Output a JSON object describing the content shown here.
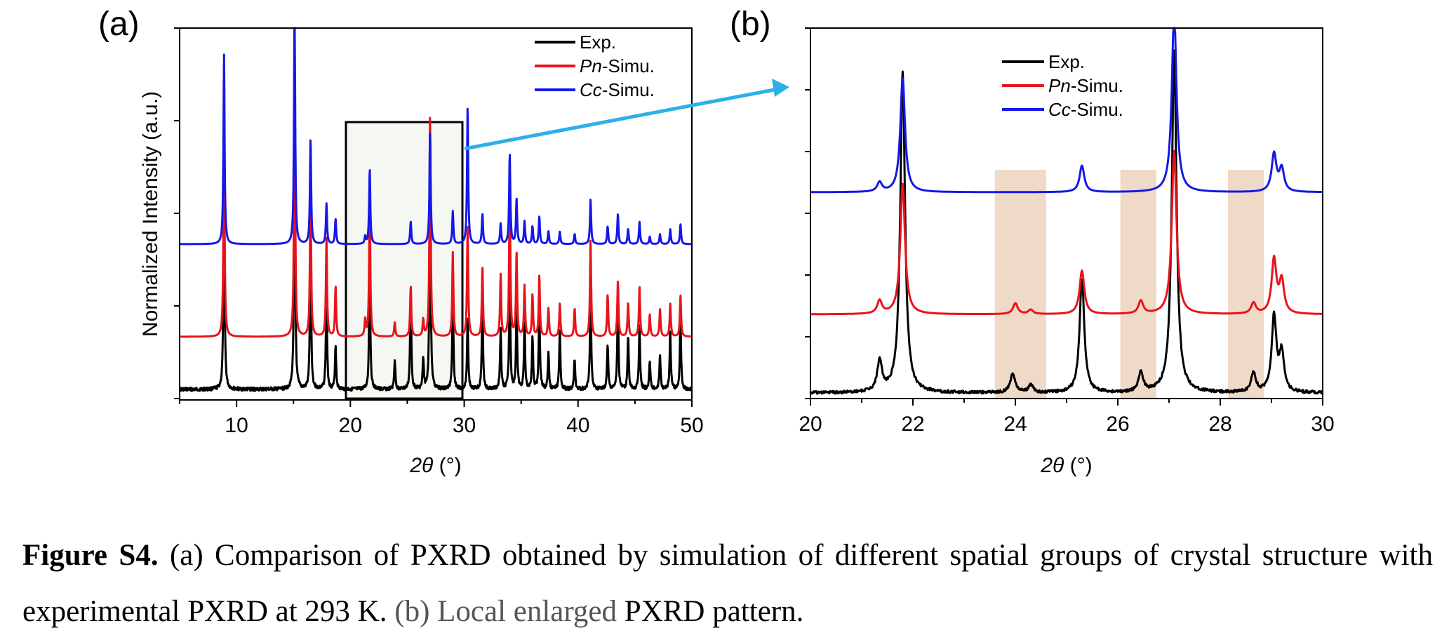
{
  "chart_data": [
    {
      "type": "line",
      "panel_label": "(a)",
      "xlabel_main": "2θ",
      "xlabel_unit": " (°)",
      "ylabel": "Normalized Intensity (a.u.)",
      "xlim": [
        5,
        50
      ],
      "xticks": [
        10,
        20,
        30,
        40,
        50
      ],
      "series": [
        {
          "name_prefix": "",
          "name_suffix": "Exp.",
          "color": "#000000",
          "peaks": [
            [
              8.9,
              0.75
            ],
            [
              15.1,
              0.95
            ],
            [
              16.5,
              0.55
            ],
            [
              17.9,
              0.35
            ],
            [
              18.7,
              0.15
            ],
            [
              21.7,
              0.45
            ],
            [
              23.9,
              0.1
            ],
            [
              25.3,
              0.35
            ],
            [
              26.4,
              0.1
            ],
            [
              27.0,
              0.8
            ],
            [
              29.0,
              0.35
            ],
            [
              30.3,
              0.25
            ],
            [
              31.6,
              0.3
            ],
            [
              33.2,
              0.2
            ],
            [
              34.0,
              0.4
            ],
            [
              34.6,
              0.28
            ],
            [
              35.3,
              0.22
            ],
            [
              36.0,
              0.18
            ],
            [
              36.6,
              0.3
            ],
            [
              37.4,
              0.12
            ],
            [
              38.4,
              0.2
            ],
            [
              39.7,
              0.1
            ],
            [
              41.1,
              0.35
            ],
            [
              42.6,
              0.15
            ],
            [
              43.5,
              0.3
            ],
            [
              44.4,
              0.18
            ],
            [
              45.4,
              0.22
            ],
            [
              46.3,
              0.1
            ],
            [
              47.2,
              0.12
            ],
            [
              48.1,
              0.2
            ],
            [
              49.0,
              0.25
            ]
          ]
        },
        {
          "name_prefix": "Pn",
          "name_suffix": "-Simu.",
          "color": "#e8141b",
          "peaks": [
            [
              8.9,
              0.75
            ],
            [
              15.1,
              0.95
            ],
            [
              16.5,
              0.55
            ],
            [
              17.9,
              0.35
            ],
            [
              18.7,
              0.18
            ],
            [
              21.3,
              0.06
            ],
            [
              21.7,
              0.5
            ],
            [
              23.9,
              0.05
            ],
            [
              25.3,
              0.18
            ],
            [
              26.4,
              0.06
            ],
            [
              27.0,
              0.8
            ],
            [
              29.0,
              0.3
            ],
            [
              30.3,
              0.4
            ],
            [
              31.6,
              0.25
            ],
            [
              33.2,
              0.22
            ],
            [
              34.0,
              0.55
            ],
            [
              34.6,
              0.3
            ],
            [
              35.3,
              0.18
            ],
            [
              36.0,
              0.15
            ],
            [
              36.6,
              0.22
            ],
            [
              37.4,
              0.1
            ],
            [
              38.4,
              0.12
            ],
            [
              39.7,
              0.1
            ],
            [
              41.1,
              0.35
            ],
            [
              42.6,
              0.15
            ],
            [
              43.5,
              0.2
            ],
            [
              44.4,
              0.12
            ],
            [
              45.4,
              0.18
            ],
            [
              46.3,
              0.08
            ],
            [
              47.2,
              0.1
            ],
            [
              48.1,
              0.12
            ],
            [
              49.0,
              0.15
            ]
          ]
        },
        {
          "name_prefix": "Cc",
          "name_suffix": "-Simu.",
          "color": "#1518e8",
          "peaks": [
            [
              8.9,
              0.75
            ],
            [
              15.1,
              0.95
            ],
            [
              16.5,
              0.42
            ],
            [
              17.9,
              0.16
            ],
            [
              18.7,
              0.1
            ],
            [
              21.3,
              0.03
            ],
            [
              21.7,
              0.3
            ],
            [
              25.3,
              0.09
            ],
            [
              27.0,
              0.45
            ],
            [
              29.0,
              0.13
            ],
            [
              30.3,
              0.55
            ],
            [
              31.6,
              0.12
            ],
            [
              33.2,
              0.08
            ],
            [
              34.0,
              0.36
            ],
            [
              34.6,
              0.18
            ],
            [
              35.3,
              0.09
            ],
            [
              36.0,
              0.07
            ],
            [
              36.6,
              0.11
            ],
            [
              37.4,
              0.05
            ],
            [
              38.4,
              0.05
            ],
            [
              39.7,
              0.04
            ],
            [
              41.1,
              0.18
            ],
            [
              42.6,
              0.07
            ],
            [
              43.5,
              0.12
            ],
            [
              44.4,
              0.06
            ],
            [
              45.4,
              0.09
            ],
            [
              46.3,
              0.03
            ],
            [
              47.2,
              0.04
            ],
            [
              48.1,
              0.06
            ],
            [
              49.0,
              0.08
            ]
          ]
        }
      ]
    },
    {
      "type": "line",
      "panel_label": "(b)",
      "xlabel_main": "2θ",
      "xlabel_unit": " (°)",
      "xlim": [
        20,
        30
      ],
      "xticks": [
        20,
        22,
        24,
        26,
        28,
        30
      ],
      "highlight_ranges": [
        [
          23.6,
          24.6
        ],
        [
          26.05,
          26.75
        ],
        [
          28.15,
          28.85
        ]
      ],
      "series": [
        {
          "name_prefix": "",
          "name_suffix": "Exp.",
          "color": "#000000",
          "peaks": [
            [
              21.35,
              0.08
            ],
            [
              21.8,
              0.85
            ],
            [
              23.95,
              0.05
            ],
            [
              24.3,
              0.02
            ],
            [
              25.3,
              0.3
            ],
            [
              26.45,
              0.05
            ],
            [
              27.1,
              0.9
            ],
            [
              28.65,
              0.05
            ],
            [
              29.05,
              0.2
            ],
            [
              29.2,
              0.1
            ]
          ]
        },
        {
          "name_prefix": "Pn",
          "name_suffix": "-Simu.",
          "color": "#e8141b",
          "peaks": [
            [
              21.35,
              0.06
            ],
            [
              21.8,
              0.6
            ],
            [
              24.0,
              0.05
            ],
            [
              24.3,
              0.02
            ],
            [
              25.3,
              0.2
            ],
            [
              26.45,
              0.06
            ],
            [
              27.1,
              0.75
            ],
            [
              28.65,
              0.05
            ],
            [
              29.05,
              0.25
            ],
            [
              29.2,
              0.15
            ]
          ]
        },
        {
          "name_prefix": "Cc",
          "name_suffix": "-Simu.",
          "color": "#1518e8",
          "peaks": [
            [
              21.35,
              0.05
            ],
            [
              21.8,
              0.6
            ],
            [
              25.3,
              0.14
            ],
            [
              27.1,
              0.95
            ],
            [
              29.05,
              0.2
            ],
            [
              29.2,
              0.12
            ]
          ]
        }
      ]
    }
  ],
  "caption": {
    "fig_label": "Figure S4.",
    "part_a": " (a) Comparison of PXRD obtained by simulation of different spatial groups of crystal structure with experimental PXRD at 293 K. ",
    "part_b": "(b) Local enlarged",
    "part_end": " PXRD pattern."
  }
}
